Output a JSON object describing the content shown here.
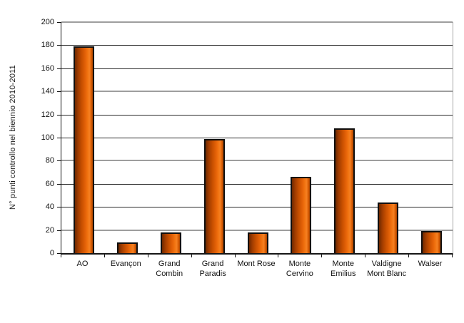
{
  "chart_data": {
    "type": "bar",
    "title": "",
    "xlabel": "",
    "ylabel": "N° punti controllo nel biennio 2010-2011",
    "categories": [
      "AO",
      "Evançon",
      "Grand Combin",
      "Grand Paradis",
      "Mont Rose",
      "Monte Cervino",
      "Monte Emilius",
      "Valdigne Mont Blanc",
      "Walser"
    ],
    "category_lines": [
      [
        "AO"
      ],
      [
        "Evançon"
      ],
      [
        "Grand",
        "Combin"
      ],
      [
        "Grand",
        "Paradis"
      ],
      [
        "Mont Rose"
      ],
      [
        "Monte",
        "Cervino"
      ],
      [
        "Monte",
        "Emilius"
      ],
      [
        "Valdigne",
        "Mont Blanc"
      ],
      [
        "Walser"
      ]
    ],
    "values": [
      179,
      9,
      18,
      99,
      18,
      66,
      108,
      44,
      19
    ],
    "ylim": [
      0,
      200
    ],
    "ytick_step": 20,
    "grid": true,
    "legend": false,
    "colors": {
      "bar_fill_main": "#E8650F",
      "bar_fill_dark": "#6E2900",
      "bar_fill_light": "#F58023",
      "bar_border": "#0F0F0F",
      "gridline_minor": "#2A2A2A",
      "gridline_major": "#9E9E9E",
      "axis": "#111111",
      "text": "#111111",
      "background": "#FFFFFF"
    }
  }
}
